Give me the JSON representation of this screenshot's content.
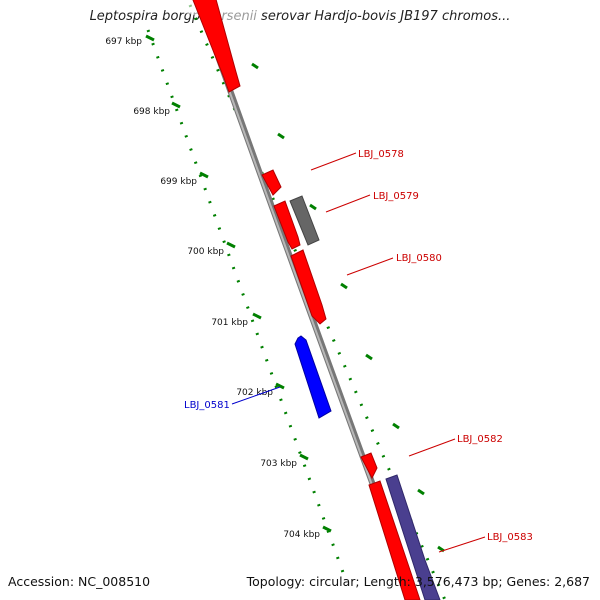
{
  "title": "Leptospira borgpetersenii serovar Hardjo-bovis JB197 chromos...",
  "footer": {
    "accession": "Accession: NC_008510",
    "summary": "Topology: circular; Length: 3,576,473 bp; Genes: 2,687"
  },
  "colors": {
    "strand_forward": "#ff0000",
    "strand_reverse": "#0000ff",
    "other_gene": "#666666",
    "overlap_feature": "#4a3f8f",
    "backbone": "#888888",
    "ticks": "#008000",
    "label_forward": "#cc0000",
    "label_reverse": "#0000cc"
  },
  "scale_labels": [
    "697 kbp",
    "698 kbp",
    "699 kbp",
    "700 kbp",
    "701 kbp",
    "702 kbp",
    "703 kbp",
    "704 kbp"
  ],
  "gene_labels": [
    {
      "name": "LBJ_0578",
      "strand": "forward"
    },
    {
      "name": "LBJ_0579",
      "strand": "forward"
    },
    {
      "name": "LBJ_0580",
      "strand": "forward"
    },
    {
      "name": "LBJ_0581",
      "strand": "reverse"
    },
    {
      "name": "LBJ_0582",
      "strand": "forward"
    },
    {
      "name": "LBJ_0583",
      "strand": "forward"
    }
  ]
}
